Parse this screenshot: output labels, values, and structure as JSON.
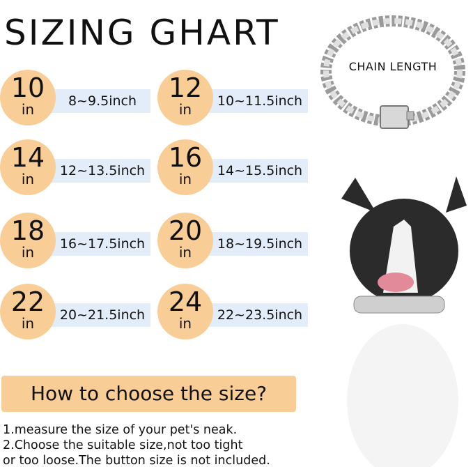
{
  "title": "SIZING GHART",
  "sizes": [
    {
      "num": "10",
      "unit": "in",
      "range": "8~9.5inch"
    },
    {
      "num": "12",
      "unit": "in",
      "range": "10~11.5inch"
    },
    {
      "num": "14",
      "unit": "in",
      "range": "12~13.5inch"
    },
    {
      "num": "16",
      "unit": "in",
      "range": "14~15.5inch"
    },
    {
      "num": "18",
      "unit": "in",
      "range": "16~17.5inch"
    },
    {
      "num": "20",
      "unit": "in",
      "range": "18~19.5inch"
    },
    {
      "num": "22",
      "unit": "in",
      "range": "20~21.5inch"
    },
    {
      "num": "24",
      "unit": "in",
      "range": "22~23.5inch"
    }
  ],
  "chain_label": "CHAIN LENGTH",
  "howto": {
    "heading": "How to choose the size?",
    "lines": [
      "1.measure the size of your pet's neak.",
      "2.Choose the suitable size,not too tight",
      "or too loose.The button size is not included."
    ]
  },
  "colors": {
    "circle": "#f9cd96",
    "bar": "#e3ecf9"
  }
}
